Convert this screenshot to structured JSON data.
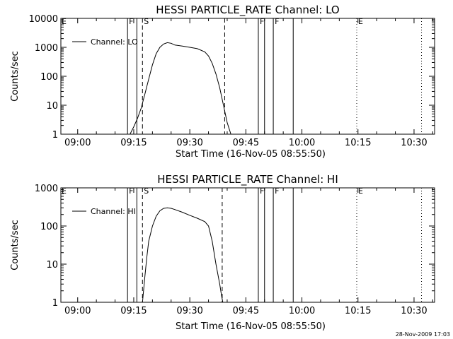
{
  "footer": {
    "timestamp": "28-Nov-2009 17:03"
  },
  "chart_data": [
    {
      "type": "line",
      "title": "HESSI PARTICLE_RATE Channel: LO",
      "xlabel": "Start Time (16-Nov-05 08:55:50)",
      "ylabel": "Counts/sec",
      "yscale": "log",
      "xlim": [
        "08:55:30",
        "10:35:30"
      ],
      "ylim": [
        1,
        10000
      ],
      "xticks": [
        "09:00",
        "09:15",
        "09:30",
        "09:45",
        "10:00",
        "10:15",
        "10:30"
      ],
      "yticks": [
        "1",
        "10",
        "100",
        "1000",
        "10000"
      ],
      "legend": {
        "label": "Channel: LO",
        "position": "top-left"
      },
      "series": [
        {
          "name": "Channel: LO",
          "x": [
            "09:14:00",
            "09:15:00",
            "09:16:00",
            "09:17:00",
            "09:18:00",
            "09:19:00",
            "09:20:00",
            "09:21:00",
            "09:22:00",
            "09:23:00",
            "09:24:00",
            "09:25:00",
            "09:26:00",
            "09:28:00",
            "09:30:00",
            "09:32:00",
            "09:34:00",
            "09:35:00",
            "09:36:00",
            "09:37:00",
            "09:38:00",
            "09:39:00",
            "09:40:00",
            "09:41:00"
          ],
          "y": [
            1,
            1.8,
            3.5,
            8,
            25,
            80,
            250,
            600,
            1000,
            1300,
            1450,
            1380,
            1200,
            1100,
            1000,
            900,
            700,
            500,
            280,
            120,
            40,
            10,
            2.5,
            1
          ]
        }
      ],
      "markers": [
        {
          "x": "09:13:20",
          "style": "solid",
          "label": "F"
        },
        {
          "x": "09:15:50",
          "style": "solid",
          "label": ""
        },
        {
          "x": "09:17:20",
          "style": "dashed",
          "label": "S"
        },
        {
          "x": "09:39:20",
          "style": "dashed",
          "label": ""
        },
        {
          "x": "09:48:20",
          "style": "solid",
          "label": "F"
        },
        {
          "x": "09:50:00",
          "style": "solid",
          "label": ""
        },
        {
          "x": "09:52:20",
          "style": "solid",
          "label": "F"
        },
        {
          "x": "09:57:40",
          "style": "solid",
          "label": ""
        },
        {
          "x": "10:14:40",
          "style": "dotted",
          "label": "E"
        },
        {
          "x": "10:32:00",
          "style": "dotted",
          "label": ""
        }
      ],
      "top_left_flag": "E"
    },
    {
      "type": "line",
      "title": "HESSI PARTICLE_RATE Channel: HI",
      "xlabel": "Start Time (16-Nov-05 08:55:50)",
      "ylabel": "Counts/sec",
      "yscale": "log",
      "xlim": [
        "08:55:30",
        "10:35:30"
      ],
      "ylim": [
        1,
        1000
      ],
      "xticks": [
        "09:00",
        "09:15",
        "09:30",
        "09:45",
        "10:00",
        "10:15",
        "10:30"
      ],
      "yticks": [
        "1",
        "10",
        "100",
        "1000"
      ],
      "legend": {
        "label": "Channel: HI",
        "position": "top-left"
      },
      "series": [
        {
          "name": "Channel: HI",
          "x": [
            "09:17:20",
            "09:18:00",
            "09:18:30",
            "09:19:00",
            "09:20:00",
            "09:21:00",
            "09:22:00",
            "09:23:00",
            "09:24:00",
            "09:25:00",
            "09:26:00",
            "09:28:00",
            "09:30:00",
            "09:32:00",
            "09:34:00",
            "09:35:00",
            "09:36:00",
            "09:37:00",
            "09:38:00",
            "09:38:30",
            "09:38:50"
          ],
          "y": [
            1,
            5,
            15,
            40,
            100,
            180,
            250,
            290,
            300,
            290,
            270,
            230,
            190,
            160,
            130,
            100,
            40,
            10,
            3,
            1.5,
            1
          ]
        }
      ],
      "markers": [
        {
          "x": "09:13:20",
          "style": "solid",
          "label": "F"
        },
        {
          "x": "09:15:50",
          "style": "solid",
          "label": ""
        },
        {
          "x": "09:17:20",
          "style": "dashed",
          "label": "S"
        },
        {
          "x": "09:38:40",
          "style": "dashed",
          "label": ""
        },
        {
          "x": "09:48:20",
          "style": "solid",
          "label": "F"
        },
        {
          "x": "09:50:00",
          "style": "solid",
          "label": ""
        },
        {
          "x": "09:52:20",
          "style": "solid",
          "label": "F"
        },
        {
          "x": "09:57:40",
          "style": "solid",
          "label": ""
        },
        {
          "x": "10:14:40",
          "style": "dotted",
          "label": "E"
        },
        {
          "x": "10:32:00",
          "style": "dotted",
          "label": ""
        }
      ],
      "top_left_flag": "E"
    }
  ]
}
